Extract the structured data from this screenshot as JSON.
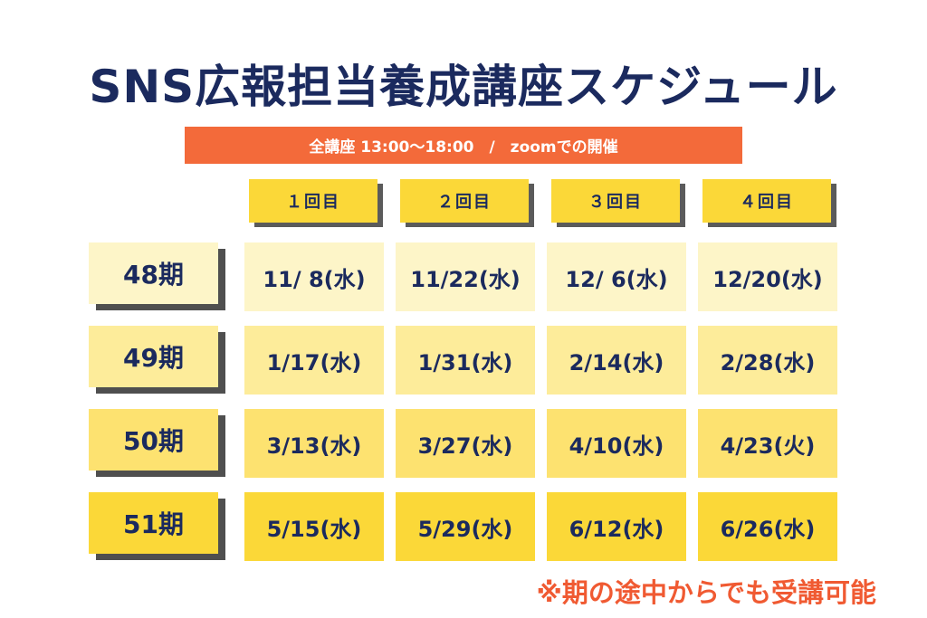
{
  "title": "SNS広報担当養成講座スケジュール",
  "banner": "全講座 13:00〜18:00　/　zoomでの開催",
  "columns": [
    "１回目",
    "２回目",
    "３回目",
    "４回目"
  ],
  "rows": [
    {
      "term": "48期",
      "dates": [
        "11/ 8(水)",
        "11/22(水)",
        "12/ 6(水)",
        "12/20(水)"
      ]
    },
    {
      "term": "49期",
      "dates": [
        "1/17(水)",
        "1/31(水)",
        "2/14(水)",
        "2/28(水)"
      ]
    },
    {
      "term": "50期",
      "dates": [
        "3/13(水)",
        "3/27(水)",
        "4/10(水)",
        "4/23(火)"
      ]
    },
    {
      "term": "51期",
      "dates": [
        "5/15(水)",
        "5/29(水)",
        "6/12(水)",
        "6/26(水)"
      ]
    }
  ],
  "note": "※期の途中からでも受講可能",
  "colors": {
    "navy": "#1b2a5e",
    "orange": "#f36a3a",
    "header_yellow": "#fbd838",
    "row_fills": [
      "#fdf5c8",
      "#fdec9a",
      "#fde270",
      "#fbd838"
    ]
  }
}
